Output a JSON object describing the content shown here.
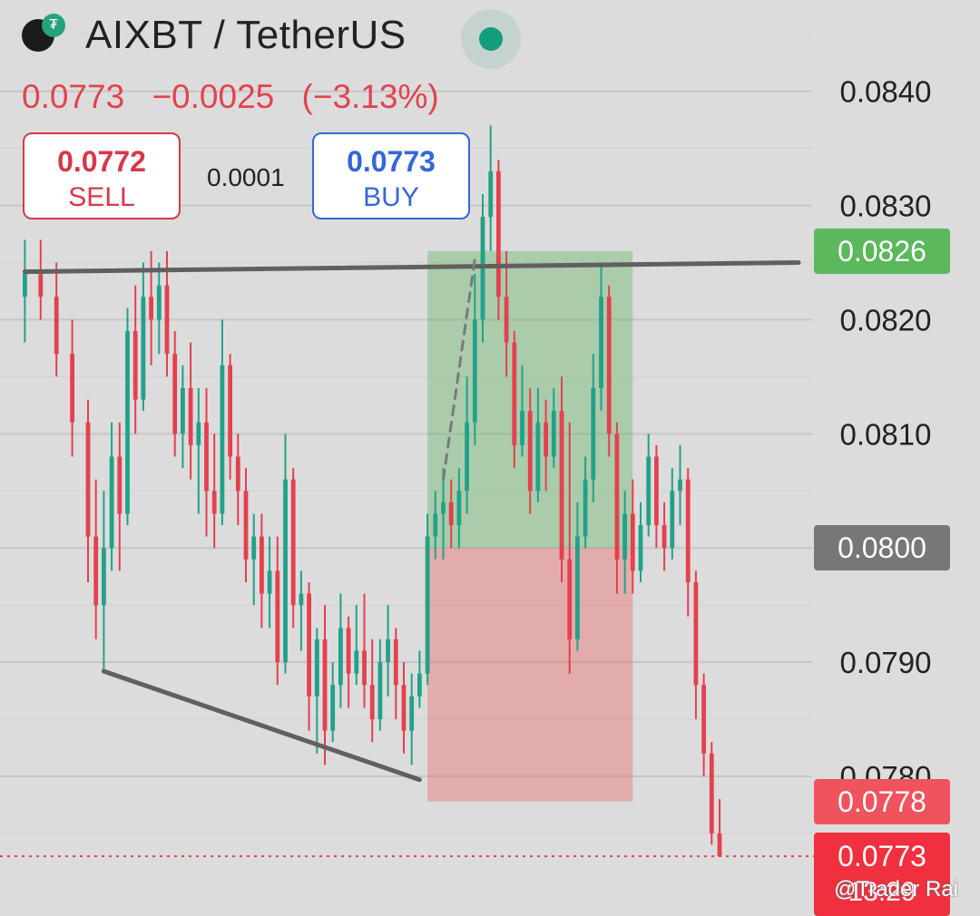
{
  "header": {
    "pair": "AIXBT / TetherUS",
    "last_price": "0.0773",
    "change_abs": "−0.0025",
    "change_pct": "(−3.13%)"
  },
  "trade": {
    "sell_price": "0.0772",
    "sell_label": "SELL",
    "spread": "0.0001",
    "buy_price": "0.0773",
    "buy_label": "BUY"
  },
  "tags": {
    "take_profit": "0.0826",
    "entry": "0.0800",
    "stop_loss": "0.0778",
    "last": "0.0773",
    "countdown": "13:29"
  },
  "watermark": "@Trader Rai",
  "colors": {
    "up": "#22a188",
    "down": "#e4404e",
    "profit_zone": "rgba(76,175,80,0.35)",
    "loss_zone": "rgba(239,83,80,0.35)",
    "trendline": "#606060",
    "take_profit_tag": "#5cb85c",
    "entry_tag": "#777777",
    "stop_tag": "#f0525e",
    "last_tag": "#f0303f"
  },
  "chart_data": {
    "type": "candlestick",
    "title": "AIXBT / TetherUS",
    "y_axis_ticks": [
      "0.0840",
      "0.0830",
      "0.0820",
      "0.0810",
      "0.0800",
      "0.0790",
      "0.0780"
    ],
    "ylim": [
      0.0768,
      0.0848
    ],
    "x_range": [
      0,
      100
    ],
    "grid": true,
    "legend": "none",
    "candles": [
      [
        2,
        0.0822,
        0.0827,
        0.0818,
        0.0824
      ],
      [
        4,
        0.0824,
        0.0827,
        0.082,
        0.0822
      ],
      [
        6,
        0.0822,
        0.0825,
        0.0815,
        0.0817
      ],
      [
        8,
        0.0817,
        0.082,
        0.0808,
        0.0811
      ],
      [
        10,
        0.0811,
        0.0813,
        0.0797,
        0.0801
      ],
      [
        11,
        0.0801,
        0.0806,
        0.0792,
        0.0795
      ],
      [
        12,
        0.0795,
        0.0805,
        0.0789,
        0.08
      ],
      [
        13,
        0.08,
        0.0811,
        0.0798,
        0.0808
      ],
      [
        14,
        0.0808,
        0.0811,
        0.0798,
        0.0803
      ],
      [
        15,
        0.0803,
        0.0821,
        0.0802,
        0.0819
      ],
      [
        16,
        0.0819,
        0.0823,
        0.081,
        0.0813
      ],
      [
        17,
        0.0813,
        0.0825,
        0.0812,
        0.0822
      ],
      [
        18,
        0.0822,
        0.0826,
        0.0816,
        0.082
      ],
      [
        19,
        0.082,
        0.0825,
        0.0817,
        0.0823
      ],
      [
        20,
        0.0823,
        0.0826,
        0.0815,
        0.0817
      ],
      [
        21,
        0.0817,
        0.0819,
        0.0808,
        0.081
      ],
      [
        22,
        0.081,
        0.0816,
        0.0807,
        0.0814
      ],
      [
        23,
        0.0814,
        0.0818,
        0.0806,
        0.0809
      ],
      [
        24,
        0.0809,
        0.0814,
        0.0803,
        0.0811
      ],
      [
        25,
        0.0811,
        0.0814,
        0.0801,
        0.0805
      ],
      [
        26,
        0.0805,
        0.081,
        0.08,
        0.0803
      ],
      [
        27,
        0.0803,
        0.082,
        0.0802,
        0.0816
      ],
      [
        28,
        0.0816,
        0.0817,
        0.0806,
        0.0808
      ],
      [
        29,
        0.0808,
        0.081,
        0.0802,
        0.0805
      ],
      [
        30,
        0.0805,
        0.0807,
        0.0797,
        0.0799
      ],
      [
        31,
        0.0799,
        0.0803,
        0.0795,
        0.0801
      ],
      [
        32,
        0.0801,
        0.0803,
        0.0793,
        0.0796
      ],
      [
        33,
        0.0796,
        0.0801,
        0.0793,
        0.0798
      ],
      [
        34,
        0.0798,
        0.0801,
        0.0788,
        0.079
      ],
      [
        35,
        0.079,
        0.081,
        0.0789,
        0.0806
      ],
      [
        36,
        0.0806,
        0.0807,
        0.0793,
        0.0795
      ],
      [
        37,
        0.0795,
        0.0798,
        0.0791,
        0.0796
      ],
      [
        38,
        0.0796,
        0.0797,
        0.0784,
        0.0787
      ],
      [
        39,
        0.0787,
        0.0793,
        0.0782,
        0.0792
      ],
      [
        40,
        0.0792,
        0.0795,
        0.0781,
        0.0784
      ],
      [
        41,
        0.0784,
        0.079,
        0.0783,
        0.0788
      ],
      [
        42,
        0.0788,
        0.0796,
        0.0786,
        0.0793
      ],
      [
        43,
        0.0793,
        0.0794,
        0.0786,
        0.0789
      ],
      [
        44,
        0.0789,
        0.0795,
        0.0788,
        0.0791
      ],
      [
        45,
        0.0791,
        0.0796,
        0.0786,
        0.0788
      ],
      [
        46,
        0.0788,
        0.0792,
        0.0783,
        0.0785
      ],
      [
        47,
        0.0785,
        0.0792,
        0.0784,
        0.079
      ],
      [
        48,
        0.079,
        0.0795,
        0.0787,
        0.0792
      ],
      [
        49,
        0.0792,
        0.0793,
        0.0785,
        0.0788
      ],
      [
        50,
        0.0788,
        0.079,
        0.0782,
        0.0784
      ],
      [
        51,
        0.0784,
        0.0789,
        0.0781,
        0.0787
      ],
      [
        52,
        0.0787,
        0.0791,
        0.0786,
        0.0789
      ],
      [
        53,
        0.0789,
        0.0803,
        0.0788,
        0.0801
      ],
      [
        54,
        0.0801,
        0.0805,
        0.0799,
        0.0803
      ],
      [
        55,
        0.0803,
        0.0807,
        0.0799,
        0.0804
      ],
      [
        56,
        0.0804,
        0.0806,
        0.08,
        0.0802
      ],
      [
        57,
        0.0802,
        0.0807,
        0.08,
        0.0805
      ],
      [
        58,
        0.0805,
        0.0815,
        0.0803,
        0.0811
      ],
      [
        59,
        0.0811,
        0.0824,
        0.0809,
        0.082
      ],
      [
        60,
        0.082,
        0.0831,
        0.0818,
        0.0829
      ],
      [
        61,
        0.0829,
        0.0837,
        0.0826,
        0.0833
      ],
      [
        62,
        0.0833,
        0.0834,
        0.082,
        0.0822
      ],
      [
        63,
        0.0822,
        0.0826,
        0.0815,
        0.0818
      ],
      [
        64,
        0.0818,
        0.0819,
        0.0807,
        0.0809
      ],
      [
        65,
        0.0809,
        0.0816,
        0.0808,
        0.0812
      ],
      [
        66,
        0.0812,
        0.0814,
        0.0803,
        0.0805
      ],
      [
        67,
        0.0805,
        0.0814,
        0.0804,
        0.0811
      ],
      [
        68,
        0.0811,
        0.0813,
        0.0805,
        0.0808
      ],
      [
        69,
        0.0808,
        0.0814,
        0.0807,
        0.0812
      ],
      [
        70,
        0.0812,
        0.0815,
        0.0797,
        0.0799
      ],
      [
        71,
        0.0799,
        0.0811,
        0.0789,
        0.0792
      ],
      [
        72,
        0.0792,
        0.0804,
        0.0791,
        0.0801
      ],
      [
        73,
        0.0801,
        0.0808,
        0.08,
        0.0806
      ],
      [
        74,
        0.0806,
        0.0817,
        0.0804,
        0.0814
      ],
      [
        75,
        0.0814,
        0.0825,
        0.0812,
        0.0822
      ],
      [
        76,
        0.0822,
        0.0823,
        0.0808,
        0.081
      ],
      [
        77,
        0.081,
        0.0811,
        0.0796,
        0.0799
      ],
      [
        78,
        0.0799,
        0.0805,
        0.0796,
        0.0803
      ],
      [
        79,
        0.0803,
        0.0806,
        0.0796,
        0.0798
      ],
      [
        80,
        0.0798,
        0.0804,
        0.0797,
        0.0802
      ],
      [
        81,
        0.0802,
        0.081,
        0.0801,
        0.0808
      ],
      [
        82,
        0.0808,
        0.0809,
        0.08,
        0.0802
      ],
      [
        83,
        0.0802,
        0.0804,
        0.0798,
        0.08
      ],
      [
        84,
        0.08,
        0.0807,
        0.0799,
        0.0805
      ],
      [
        85,
        0.0805,
        0.0809,
        0.0802,
        0.0806
      ],
      [
        86,
        0.0806,
        0.0807,
        0.0794,
        0.0797
      ],
      [
        87,
        0.0797,
        0.0798,
        0.0785,
        0.0788
      ],
      [
        88,
        0.0788,
        0.0789,
        0.078,
        0.0782
      ],
      [
        89,
        0.0782,
        0.0783,
        0.0774,
        0.0775
      ],
      [
        90,
        0.0775,
        0.0778,
        0.0773,
        0.0773
      ]
    ],
    "positions": [
      {
        "x_start": 53,
        "x_end": 79,
        "take_profit": 0.0826,
        "entry": 0.08,
        "stop_loss": 0.07778
      }
    ],
    "lines": [
      {
        "kind": "resistance",
        "x1": 2,
        "y1": 0.08242,
        "x2": 100,
        "y2": 0.0825
      },
      {
        "kind": "support",
        "x1": 12,
        "y1": 0.07892,
        "x2": 52,
        "y2": 0.07797
      },
      {
        "kind": "dashed-path",
        "x1": 55,
        "y1": 0.0806,
        "x2": 59,
        "y2": 0.08253
      }
    ]
  }
}
